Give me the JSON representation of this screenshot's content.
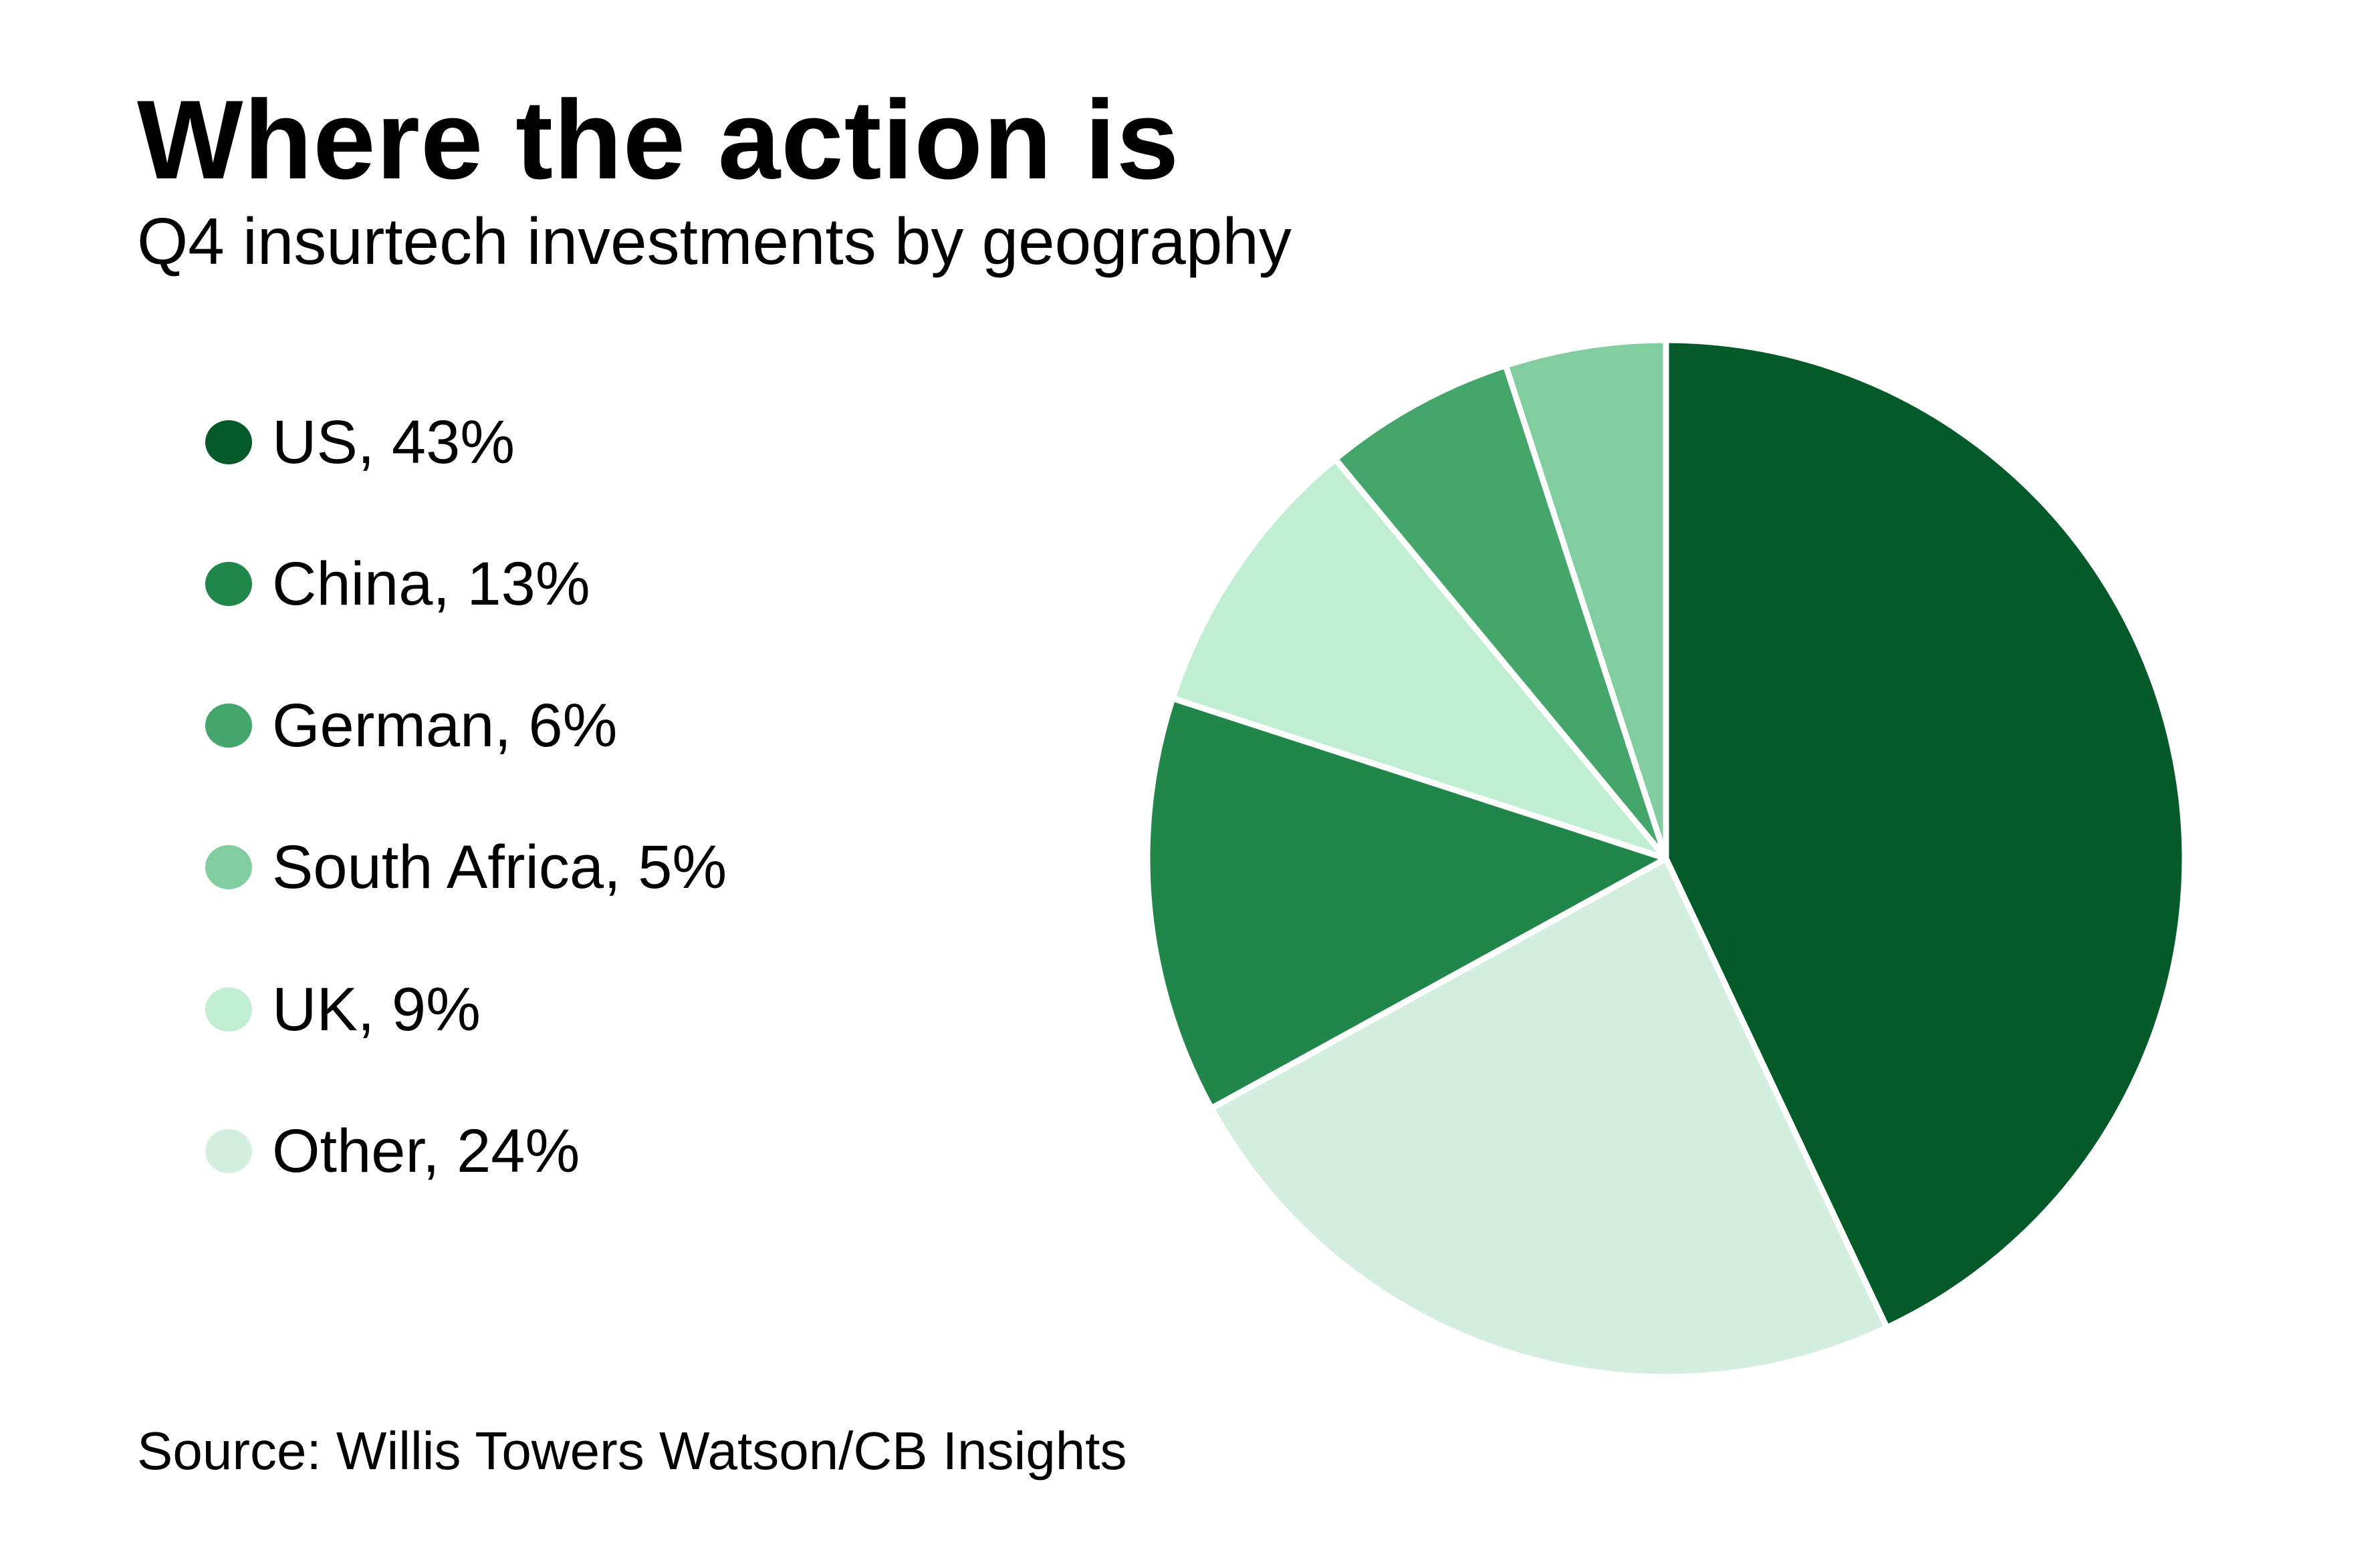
{
  "chart_data": {
    "type": "pie",
    "title": "Where the action is",
    "subtitle": "Q4 insurtech investments by geography",
    "source": "Source: Willis Towers Watson/CB Insights",
    "legend_position": "left",
    "slices": [
      {
        "label": "US",
        "value": 43,
        "legend": "US, 43%",
        "color": "#045a28"
      },
      {
        "label": "Other",
        "value": 24,
        "legend": "Other, 24%",
        "color": "#d4efe0"
      },
      {
        "label": "China",
        "value": 13,
        "legend": "China, 13%",
        "color": "#21864a"
      },
      {
        "label": "UK",
        "value": 9,
        "legend": "UK, 9%",
        "color": "#bfeed3"
      },
      {
        "label": "German",
        "value": 6,
        "legend": "German, 6%",
        "color": "#44a66a"
      },
      {
        "label": "South Africa",
        "value": 5,
        "legend": "South Africa, 5%",
        "color": "#82cda0"
      }
    ],
    "legend_order": [
      "US",
      "China",
      "German",
      "South Africa",
      "UK",
      "Other"
    ]
  }
}
